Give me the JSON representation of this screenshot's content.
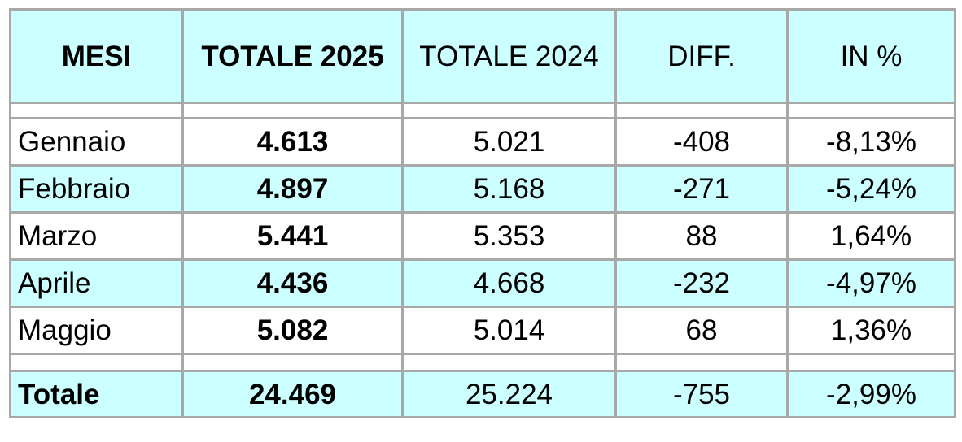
{
  "header": {
    "col_months": "MESI",
    "col_total_2025": "TOTALE 2025",
    "col_total_2024": "TOTALE 2024",
    "col_diff": "DIFF.",
    "col_percent": "IN %"
  },
  "rows": [
    {
      "month": "Gennaio",
      "total_2025": "4.613",
      "total_2024": "5.021",
      "diff": "-408",
      "percent": "-8,13%"
    },
    {
      "month": "Febbraio",
      "total_2025": "4.897",
      "total_2024": "5.168",
      "diff": "-271",
      "percent": "-5,24%"
    },
    {
      "month": "Marzo",
      "total_2025": "5.441",
      "total_2024": "5.353",
      "diff": "88",
      "percent": "1,64%"
    },
    {
      "month": "Aprile",
      "total_2025": "4.436",
      "total_2024": "4.668",
      "diff": "-232",
      "percent": "-4,97%"
    },
    {
      "month": "Maggio",
      "total_2025": "5.082",
      "total_2024": "5.014",
      "diff": "68",
      "percent": "1,36%"
    }
  ],
  "total": {
    "label": "Totale",
    "total_2025": "24.469",
    "total_2024": "25.224",
    "diff": "-755",
    "percent": "-2,99%"
  },
  "colors": {
    "highlight_bg": "#ccffff",
    "border": "#a8a8a8"
  }
}
